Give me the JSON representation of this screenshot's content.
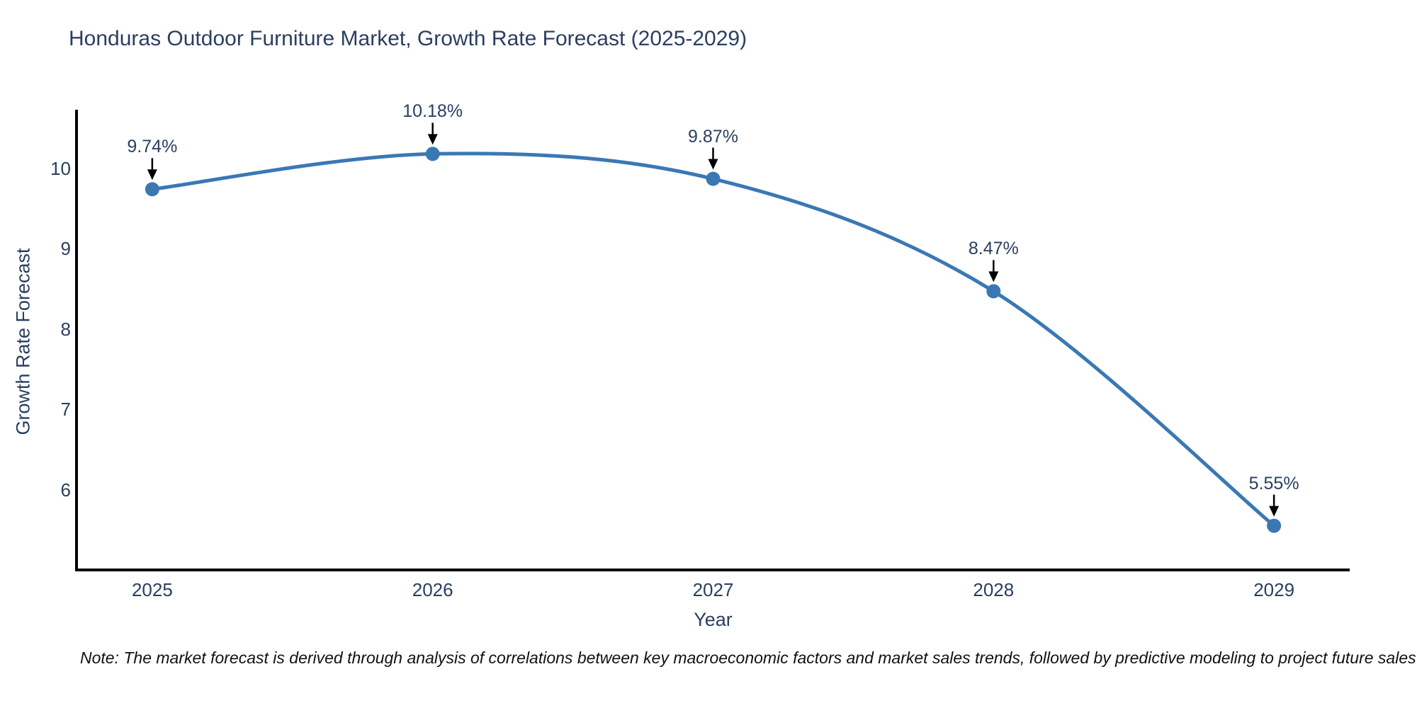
{
  "chart": {
    "title": "Honduras Outdoor Furniture Market, Growth Rate Forecast (2025-2029)",
    "xlabel": "Year",
    "ylabel": "Growth Rate Forecast",
    "note": "Note: The market forecast is derived through analysis of correlations between key macroeconomic factors and market sales trends, followed by predictive modeling to project future sales"
  },
  "chart_data": {
    "type": "line",
    "title": "Honduras Outdoor Furniture Market, Growth Rate Forecast (2025-2029)",
    "xlabel": "Year",
    "ylabel": "Growth Rate Forecast",
    "x": [
      2025,
      2026,
      2027,
      2028,
      2029
    ],
    "values": [
      9.74,
      10.18,
      9.87,
      8.47,
      5.55
    ],
    "point_labels": [
      "9.74%",
      "10.18%",
      "9.87%",
      "8.47%",
      "5.55%"
    ],
    "x_tick_labels": [
      "2025",
      "2026",
      "2027",
      "2028",
      "2029"
    ],
    "y_ticks": [
      6,
      7,
      8,
      9,
      10
    ],
    "xlim": [
      2024.73,
      2029.27
    ],
    "ylim": [
      5.0,
      10.73
    ],
    "grid": false,
    "legend": "none",
    "line_shape": "spline",
    "colors": {
      "line": "#3a78b4",
      "marker": "#3a78b4",
      "axis_line": "#000000",
      "text": "#2a3f5f",
      "annotation_arrow": "#000000"
    }
  }
}
